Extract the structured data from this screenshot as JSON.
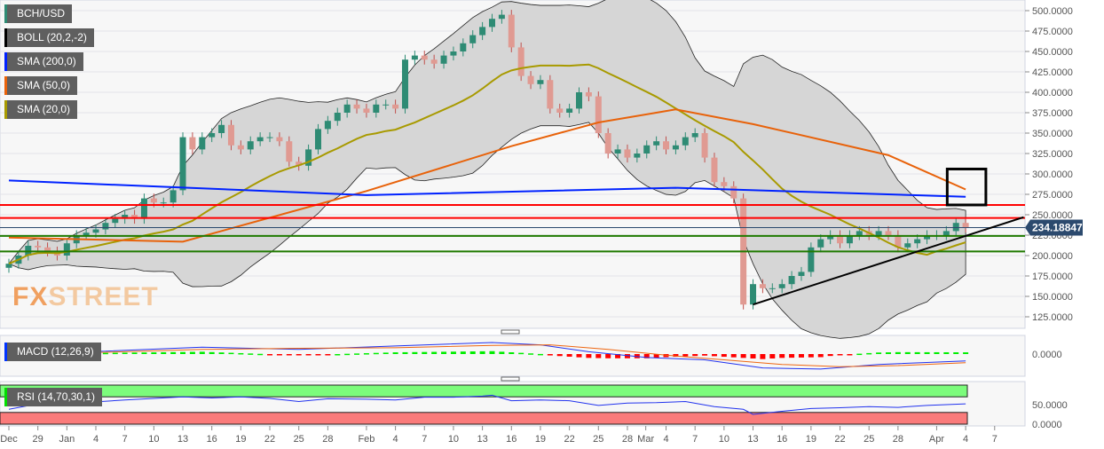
{
  "legend": [
    {
      "label": "BCH/USD",
      "color": "#2e8b74"
    },
    {
      "label": "BOLL (20,2,-2)",
      "color": "#000000"
    },
    {
      "label": "SMA (200,0)",
      "color": "#0022ff"
    },
    {
      "label": "SMA (50,0)",
      "color": "#e8620a"
    },
    {
      "label": "SMA (20,0)",
      "color": "#a89a00"
    }
  ],
  "macd_label": "MACD (12,26,9)",
  "rsi_label": "RSI (14,70,30,1)",
  "watermark": "FXSTREET",
  "price_tag": "234.18847",
  "chart_data": {
    "type": "candlestick",
    "symbol": "BCH/USD",
    "start_date": "Dec 26",
    "closes": [
      190,
      200,
      212,
      210,
      205,
      200,
      215,
      225,
      228,
      232,
      240,
      245,
      250,
      245,
      270,
      265,
      265,
      280,
      345,
      330,
      345,
      350,
      360,
      335,
      330,
      340,
      345,
      345,
      340,
      315,
      310,
      330,
      355,
      365,
      375,
      385,
      380,
      375,
      385,
      385,
      380,
      440,
      445,
      440,
      435,
      445,
      450,
      460,
      470,
      480,
      490,
      495,
      455,
      420,
      410,
      415,
      380,
      375,
      380,
      400,
      395,
      350,
      325,
      330,
      320,
      325,
      335,
      340,
      330,
      335,
      345,
      350,
      320,
      290,
      285,
      270,
      140,
      165,
      160,
      160,
      165,
      175,
      180,
      210,
      220,
      225,
      215,
      225,
      230,
      225,
      230,
      225,
      210,
      215,
      220,
      225,
      225,
      230,
      240,
      234.19
    ],
    "sma200": [
      [
        0,
        292
      ],
      [
        37,
        274
      ],
      [
        69,
        283
      ],
      [
        99,
        272
      ]
    ],
    "sma50": [
      [
        0,
        222
      ],
      [
        18,
        217
      ],
      [
        37,
        279
      ],
      [
        52,
        334
      ],
      [
        61,
        363
      ],
      [
        69,
        379
      ],
      [
        77,
        361
      ],
      [
        91,
        323
      ],
      [
        99,
        281
      ]
    ],
    "hlines": {
      "red": [
        262,
        246
      ],
      "green": [
        224,
        205
      ],
      "last_price": 234.19
    },
    "trendline": [
      [
        77,
        140
      ],
      [
        105,
        247
      ]
    ],
    "box": {
      "from_day": 97,
      "to_day": 101,
      "top": 306,
      "bottom": 262
    },
    "yaxis": {
      "ticks": [
        500,
        475,
        450,
        425,
        400,
        375,
        350,
        325,
        300,
        275,
        250,
        225,
        200,
        175,
        150,
        125
      ],
      "range": [
        112,
        513
      ]
    },
    "xaxis": {
      "ticks": [
        [
          "Dec",
          0
        ],
        [
          "29",
          3
        ],
        [
          "Jan",
          6
        ],
        [
          "4",
          9
        ],
        [
          "7",
          12
        ],
        [
          "10",
          15
        ],
        [
          "13",
          18
        ],
        [
          "16",
          21
        ],
        [
          "19",
          24
        ],
        [
          "22",
          27
        ],
        [
          "25",
          30
        ],
        [
          "28",
          33
        ],
        [
          "Feb",
          37
        ],
        [
          "4",
          40
        ],
        [
          "7",
          43
        ],
        [
          "10",
          46
        ],
        [
          "13",
          49
        ],
        [
          "16",
          52
        ],
        [
          "19",
          55
        ],
        [
          "22",
          58
        ],
        [
          "25",
          61
        ],
        [
          "28",
          64
        ],
        [
          "Mar",
          65.9
        ],
        [
          "4",
          68
        ],
        [
          "7",
          71
        ],
        [
          "10",
          74
        ],
        [
          "13",
          77
        ],
        [
          "16",
          80
        ],
        [
          "19",
          83
        ],
        [
          "22",
          86
        ],
        [
          "25",
          89
        ],
        [
          "28",
          92
        ],
        [
          "Apr",
          96
        ],
        [
          "4",
          99
        ],
        [
          "7",
          102
        ]
      ]
    },
    "macd": {
      "zero_tick": "0.0000",
      "macd": [
        [
          0,
          2
        ],
        [
          10,
          5
        ],
        [
          20,
          12
        ],
        [
          30,
          8
        ],
        [
          40,
          14
        ],
        [
          50,
          20
        ],
        [
          55,
          16
        ],
        [
          60,
          4
        ],
        [
          66,
          -6
        ],
        [
          72,
          -10
        ],
        [
          78,
          -24
        ],
        [
          84,
          -26
        ],
        [
          90,
          -18
        ],
        [
          99,
          -12
        ]
      ],
      "signal": [
        [
          0,
          2
        ],
        [
          10,
          3
        ],
        [
          20,
          8
        ],
        [
          30,
          10
        ],
        [
          40,
          11
        ],
        [
          50,
          15
        ],
        [
          56,
          16
        ],
        [
          62,
          8
        ],
        [
          68,
          -2
        ],
        [
          74,
          -10
        ],
        [
          80,
          -18
        ],
        [
          86,
          -22
        ],
        [
          92,
          -20
        ],
        [
          99,
          -15
        ]
      ]
    },
    "rsi": {
      "ticks": [
        "50.0000",
        "0.0000"
      ],
      "overbought": 70,
      "oversold": 30,
      "values": [
        [
          0,
          38
        ],
        [
          3,
          52
        ],
        [
          6,
          55
        ],
        [
          9,
          57
        ],
        [
          12,
          62
        ],
        [
          15,
          66
        ],
        [
          18,
          70
        ],
        [
          21,
          67
        ],
        [
          24,
          70
        ],
        [
          27,
          66
        ],
        [
          30,
          58
        ],
        [
          33,
          65
        ],
        [
          37,
          64
        ],
        [
          40,
          62
        ],
        [
          43,
          69
        ],
        [
          46,
          69
        ],
        [
          49,
          72
        ],
        [
          50,
          74
        ],
        [
          52,
          60
        ],
        [
          55,
          62
        ],
        [
          58,
          60
        ],
        [
          61,
          48
        ],
        [
          64,
          54
        ],
        [
          67,
          55
        ],
        [
          70,
          58
        ],
        [
          73,
          45
        ],
        [
          76,
          38
        ],
        [
          77,
          25
        ],
        [
          80,
          33
        ],
        [
          83,
          40
        ],
        [
          86,
          42
        ],
        [
          89,
          45
        ],
        [
          92,
          43
        ],
        [
          95,
          48
        ],
        [
          99,
          52
        ]
      ]
    }
  }
}
